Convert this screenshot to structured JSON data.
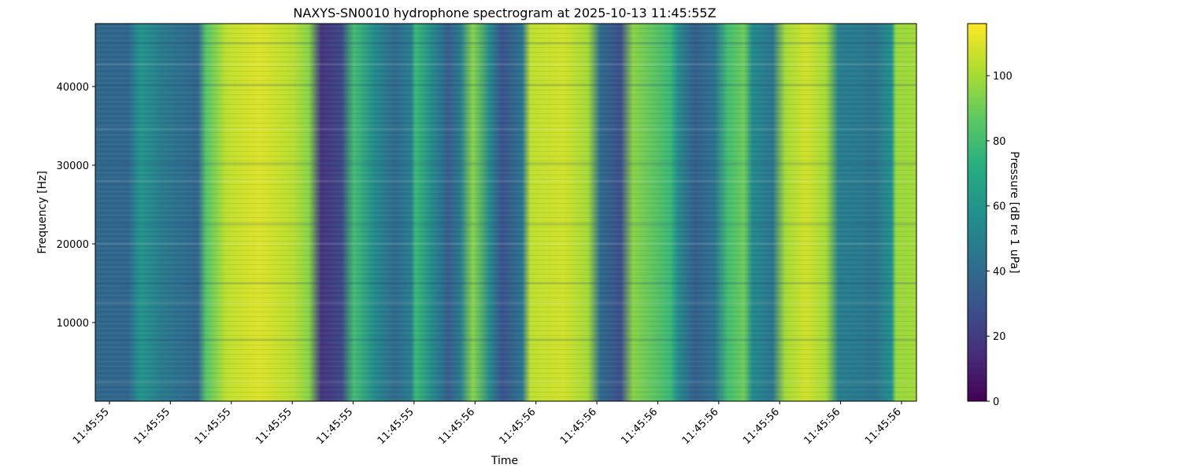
{
  "chart_data": {
    "type": "heatmap",
    "title": "NAXYS-SN0010 hydrophone spectrogram at 2025-10-13 11:45:55Z",
    "xlabel": "Time",
    "ylabel": "Frequency [Hz]",
    "colorbar_label": "Pressure [dB re 1 uPa]",
    "colormap": "viridis",
    "x_tick_labels": [
      "11:45:55",
      "11:45:55",
      "11:45:55",
      "11:45:55",
      "11:45:55",
      "11:45:55",
      "11:45:56",
      "11:45:56",
      "11:45:56",
      "11:45:56",
      "11:45:56",
      "11:45:56",
      "11:45:56",
      "11:45:56"
    ],
    "y_ticks": [
      10000,
      20000,
      30000,
      40000
    ],
    "ylim": [
      0,
      48000
    ],
    "colorbar_ticks": [
      0,
      20,
      40,
      60,
      80,
      100
    ],
    "colorbar_range": [
      0,
      116
    ],
    "time_bands_db": [
      {
        "t": 0.0,
        "db": 40
      },
      {
        "t": 0.04,
        "db": 38
      },
      {
        "t": 0.055,
        "db": 60
      },
      {
        "t": 0.08,
        "db": 48
      },
      {
        "t": 0.105,
        "db": 42
      },
      {
        "t": 0.125,
        "db": 38
      },
      {
        "t": 0.135,
        "db": 85
      },
      {
        "t": 0.16,
        "db": 105
      },
      {
        "t": 0.2,
        "db": 110
      },
      {
        "t": 0.24,
        "db": 104
      },
      {
        "t": 0.26,
        "db": 95
      },
      {
        "t": 0.275,
        "db": 18
      },
      {
        "t": 0.3,
        "db": 25
      },
      {
        "t": 0.315,
        "db": 80
      },
      {
        "t": 0.34,
        "db": 55
      },
      {
        "t": 0.365,
        "db": 40
      },
      {
        "t": 0.385,
        "db": 50
      },
      {
        "t": 0.39,
        "db": 78
      },
      {
        "t": 0.41,
        "db": 55
      },
      {
        "t": 0.43,
        "db": 35
      },
      {
        "t": 0.445,
        "db": 48
      },
      {
        "t": 0.46,
        "db": 95
      },
      {
        "t": 0.48,
        "db": 55
      },
      {
        "t": 0.495,
        "db": 30
      },
      {
        "t": 0.52,
        "db": 45
      },
      {
        "t": 0.53,
        "db": 105
      },
      {
        "t": 0.57,
        "db": 108
      },
      {
        "t": 0.6,
        "db": 100
      },
      {
        "t": 0.615,
        "db": 40
      },
      {
        "t": 0.64,
        "db": 28
      },
      {
        "t": 0.655,
        "db": 95
      },
      {
        "t": 0.7,
        "db": 78
      },
      {
        "t": 0.71,
        "db": 55
      },
      {
        "t": 0.73,
        "db": 35
      },
      {
        "t": 0.755,
        "db": 45
      },
      {
        "t": 0.77,
        "db": 80
      },
      {
        "t": 0.79,
        "db": 90
      },
      {
        "t": 0.8,
        "db": 55
      },
      {
        "t": 0.825,
        "db": 45
      },
      {
        "t": 0.84,
        "db": 100
      },
      {
        "t": 0.865,
        "db": 108
      },
      {
        "t": 0.89,
        "db": 100
      },
      {
        "t": 0.905,
        "db": 50
      },
      {
        "t": 0.95,
        "db": 45
      },
      {
        "t": 0.97,
        "db": 58
      },
      {
        "t": 0.975,
        "db": 98
      },
      {
        "t": 1.0,
        "db": 100
      }
    ]
  }
}
